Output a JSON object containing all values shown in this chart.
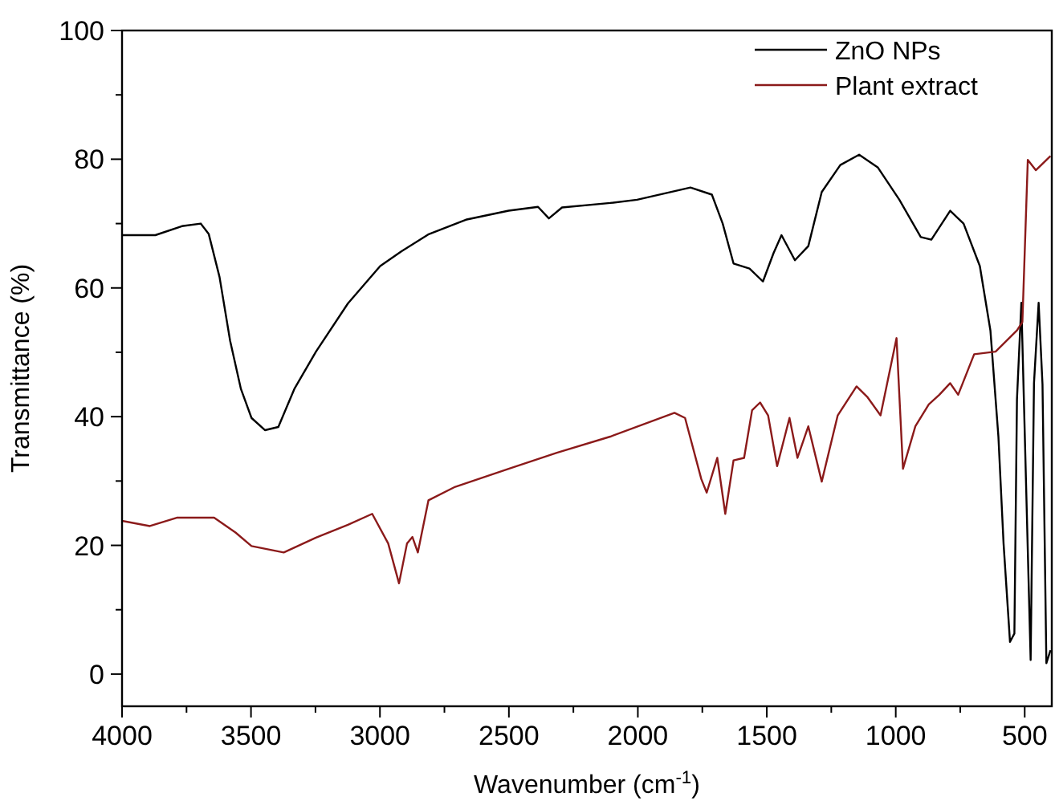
{
  "chart_data": {
    "type": "line",
    "xlabel": "Wavenumber (cm$^{-1}$)",
    "ylabel": "Transmittance (%)",
    "xlim": [
      4000,
      395
    ],
    "ylim": [
      -5,
      100
    ],
    "xticks": [
      4000,
      {
        "value": 3750,
        "label": null
      },
      3500,
      {
        "value": 3250,
        "label": null
      },
      3000,
      {
        "value": 2750,
        "label": null
      },
      2500,
      {
        "value": 2250,
        "label": null
      },
      2000,
      {
        "value": 1750,
        "label": null
      },
      1500,
      {
        "value": 1250,
        "label": null
      },
      1000,
      {
        "value": 750,
        "label": null
      },
      500
    ],
    "yticks": [
      0,
      {
        "value": 10,
        "label": null
      },
      20,
      {
        "value": 30,
        "label": null
      },
      40,
      {
        "value": 50,
        "label": null
      },
      60,
      {
        "value": 70,
        "label": null
      },
      80,
      {
        "value": 90,
        "label": null
      },
      100
    ],
    "grid": false,
    "legend": "top right",
    "line_style": "solid",
    "marker": "none",
    "series": [
      {
        "name": "ZnO NPs",
        "color": "#000000",
        "x": [
          4000,
          3871,
          3768,
          3695,
          3664,
          3622,
          3581,
          3539,
          3498,
          3446,
          3394,
          3332,
          3248,
          3124,
          2999,
          2916,
          2813,
          2667,
          2501,
          2387,
          2345,
          2294,
          2107,
          2003,
          1796,
          1713,
          1671,
          1629,
          1567,
          1515,
          1474,
          1443,
          1391,
          1339,
          1287,
          1215,
          1142,
          1069,
          986,
          903,
          862,
          789,
          737,
          674,
          633,
          602,
          582,
          557,
          540,
          530,
          513,
          477,
          464,
          446,
          431,
          416,
          400
        ],
        "values": [
          68.2,
          68.2,
          69.6,
          70.0,
          68.4,
          61.7,
          51.8,
          44.3,
          39.8,
          37.9,
          38.4,
          44.3,
          50.1,
          57.6,
          63.4,
          65.7,
          68.3,
          70.6,
          72.0,
          72.6,
          70.8,
          72.5,
          73.2,
          73.7,
          75.6,
          74.5,
          70.0,
          63.8,
          63.0,
          61.0,
          65.4,
          68.2,
          64.3,
          66.5,
          74.9,
          79.1,
          80.7,
          78.7,
          73.7,
          67.9,
          67.5,
          72.0,
          70.0,
          63.4,
          53.4,
          36.9,
          20.3,
          5.0,
          6.3,
          42.7,
          57.7,
          2.2,
          45.2,
          57.7,
          45.0,
          1.7,
          3.7
        ]
      },
      {
        "name": "Plant extract",
        "color": "#8b1a1a",
        "x": [
          4000,
          3892,
          3788,
          3643,
          3560,
          3498,
          3373,
          3248,
          3124,
          3030,
          2968,
          2926,
          2895,
          2874,
          2853,
          2812,
          2708,
          2501,
          2314,
          2107,
          1858,
          1817,
          1754,
          1733,
          1692,
          1661,
          1629,
          1588,
          1557,
          1526,
          1495,
          1460,
          1412,
          1381,
          1339,
          1287,
          1225,
          1152,
          1111,
          1059,
          997,
          972,
          924,
          872,
          831,
          789,
          758,
          696,
          613,
          530,
          509,
          488,
          457,
          400
        ],
        "values": [
          23.8,
          23.0,
          24.3,
          24.3,
          22.0,
          19.9,
          18.9,
          21.2,
          23.2,
          24.9,
          20.3,
          14.1,
          20.3,
          21.3,
          18.9,
          27.0,
          29.1,
          31.9,
          34.4,
          36.9,
          40.6,
          39.8,
          30.3,
          28.2,
          33.6,
          24.9,
          33.2,
          33.6,
          41.0,
          42.2,
          40.2,
          32.3,
          39.8,
          33.6,
          38.5,
          29.9,
          40.2,
          44.7,
          43.1,
          40.2,
          52.2,
          31.9,
          38.5,
          41.9,
          43.4,
          45.2,
          43.4,
          49.7,
          50.1,
          53.4,
          54.7,
          79.9,
          78.3,
          80.5
        ]
      }
    ]
  }
}
